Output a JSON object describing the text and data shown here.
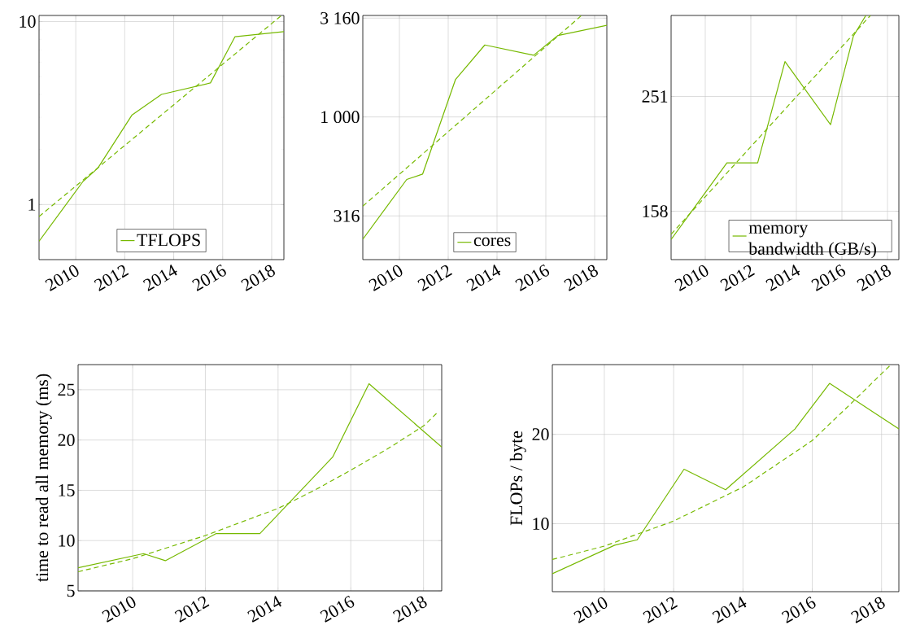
{
  "chart_data": [
    {
      "type": "line",
      "log": "y",
      "xlim": [
        2008.5,
        2018.5
      ],
      "ylim": [
        0.5,
        10.8
      ],
      "xticks": [
        2010,
        2012,
        2014,
        2016,
        2018
      ],
      "yticks": [
        1,
        10
      ],
      "grid": true,
      "legend": "bottom",
      "series": [
        {
          "name": "TFLOPS",
          "color": "#76b900",
          "line_style": "solid",
          "x": [
            2008.5,
            2010.3,
            2010.9,
            2012.3,
            2013.5,
            2015.5,
            2016.5,
            2018.5
          ],
          "values": [
            0.63,
            1.34,
            1.58,
            3.09,
            4.0,
            4.62,
            8.26,
            8.81
          ]
        },
        {
          "color": "#76b900",
          "line_style": "dashed",
          "x": [
            2008.5,
            2018.4
          ],
          "values": [
            0.86,
            10.8
          ]
        }
      ]
    },
    {
      "type": "line",
      "log": "y",
      "xlim": [
        2008.5,
        2018.5
      ],
      "ylim": [
        190,
        3260
      ],
      "xticks": [
        2010,
        2012,
        2014,
        2016,
        2018
      ],
      "yticks": [
        316,
        {
          "value": 1000,
          "label": "1 000"
        },
        {
          "value": 3160,
          "label": "3 160"
        }
      ],
      "grid": true,
      "legend": "bottom",
      "series": [
        {
          "name": "cores",
          "color": "#76b900",
          "line_style": "solid",
          "x": [
            2008.5,
            2010.3,
            2010.95,
            2012.3,
            2013.5,
            2015.5,
            2016.5,
            2018.5
          ],
          "values": [
            241,
            483,
            514,
            1549,
            2312,
            2051,
            2582,
            2905
          ]
        },
        {
          "color": "#76b900",
          "line_style": "dashed",
          "x": [
            2008.5,
            2017.45
          ],
          "values": [
            354,
            3250
          ]
        }
      ]
    },
    {
      "type": "line",
      "log": "y",
      "xlim": [
        2008.5,
        2018.5
      ],
      "ylim": [
        130,
        348
      ],
      "xticks": [
        2010,
        2012,
        2014,
        2016,
        2018
      ],
      "yticks": [
        158,
        251
      ],
      "grid": true,
      "legend": "bottom right",
      "series": [
        {
          "name": "memory bandwidth (GB/s)",
          "color": "#76b900",
          "line_style": "solid",
          "x": [
            2008.5,
            2010.95,
            2012.3,
            2013.5,
            2015.5,
            2016.5,
            2017.05
          ],
          "values": [
            141,
            192,
            192,
            289,
            224,
            320,
            348
          ]
        },
        {
          "color": "#76b900",
          "line_style": "dashed",
          "x": [
            2008.5,
            2017.25
          ],
          "values": [
            144,
            348
          ]
        }
      ]
    },
    {
      "type": "line",
      "ylabel": "time to read all memory (ms)",
      "xlim": [
        2008.5,
        2018.5
      ],
      "ylim": [
        5,
        27.5
      ],
      "xticks": [
        2010,
        2012,
        2014,
        2016,
        2018
      ],
      "yticks": [
        5,
        10,
        15,
        20,
        25
      ],
      "grid": true,
      "series": [
        {
          "color": "#76b900",
          "line_style": "solid",
          "x": [
            2008.5,
            2010.3,
            2010.9,
            2012.3,
            2013.5,
            2015.5,
            2016.5,
            2018.5
          ],
          "values": [
            7.3,
            8.7,
            8.0,
            10.7,
            10.7,
            18.3,
            25.6,
            19.3
          ]
        },
        {
          "color": "#76b900",
          "line_style": "dashed",
          "x": [
            2008.5,
            2010,
            2012,
            2014,
            2015,
            2016,
            2017,
            2018,
            2018.4
          ],
          "values": [
            6.9,
            8.2,
            10.5,
            13.2,
            15.0,
            17.0,
            19.1,
            21.4,
            22.8
          ]
        }
      ]
    },
    {
      "type": "line",
      "ylabel": "FLOPs / byte",
      "xlim": [
        2008.5,
        2018.5
      ],
      "ylim": [
        2.4,
        27.8
      ],
      "xticks": [
        2010,
        2012,
        2014,
        2016,
        2018
      ],
      "yticks": [
        10,
        20
      ],
      "grid": true,
      "series": [
        {
          "color": "#76b900",
          "line_style": "solid",
          "x": [
            2008.5,
            2010.3,
            2010.95,
            2012.3,
            2013.5,
            2015.5,
            2016.5,
            2018.5
          ],
          "values": [
            4.4,
            7.6,
            8.2,
            16.1,
            13.8,
            20.6,
            25.7,
            20.6
          ]
        },
        {
          "color": "#76b900",
          "line_style": "dashed",
          "x": [
            2008.5,
            2010,
            2012,
            2014,
            2016,
            2017,
            2018.27
          ],
          "values": [
            6.0,
            7.5,
            10.3,
            14.1,
            19.3,
            23.0,
            27.8
          ]
        }
      ]
    }
  ]
}
